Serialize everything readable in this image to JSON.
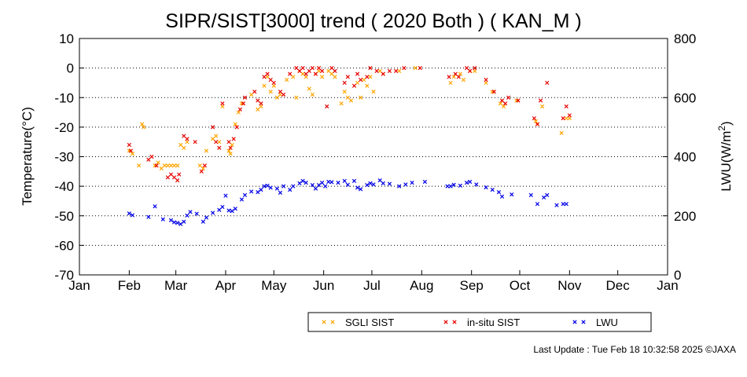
{
  "chart_data": {
    "type": "scatter",
    "title": "SIPR/SIST[3000] trend ( 2020 Both ) ( KAN_M )",
    "ylabel": "Temperature(°C)",
    "y2label": "LWU(W/m²)",
    "xlim": [
      1,
      366
    ],
    "ylim": [
      -70,
      10
    ],
    "y2lim": [
      0,
      800
    ],
    "x_ticks": [
      {
        "day": 1,
        "label": "Jan"
      },
      {
        "day": 32,
        "label": "Feb"
      },
      {
        "day": 61,
        "label": "Mar"
      },
      {
        "day": 92,
        "label": "Apr"
      },
      {
        "day": 122,
        "label": "May"
      },
      {
        "day": 153,
        "label": "Jun"
      },
      {
        "day": 183,
        "label": "Jul"
      },
      {
        "day": 214,
        "label": "Aug"
      },
      {
        "day": 245,
        "label": "Sep"
      },
      {
        "day": 275,
        "label": "Oct"
      },
      {
        "day": 306,
        "label": "Nov"
      },
      {
        "day": 336,
        "label": "Dec"
      },
      {
        "day": 367,
        "label": "Jan"
      }
    ],
    "y_ticks": [
      10,
      0,
      -10,
      -20,
      -30,
      -40,
      -50,
      -60,
      -70
    ],
    "y2_ticks": [
      800,
      600,
      400,
      200,
      0
    ],
    "grid": "horizontal dotted",
    "legend_position": "bottom",
    "series": [
      {
        "name": "SGLI SIST",
        "color": "#ffa500",
        "axis": "left",
        "points": [
          [
            32,
            -28
          ],
          [
            34,
            -29
          ],
          [
            38,
            -33
          ],
          [
            40,
            -19
          ],
          [
            41,
            -20
          ],
          [
            48,
            -33
          ],
          [
            50,
            -32
          ],
          [
            52,
            -34
          ],
          [
            54,
            -33
          ],
          [
            56,
            -33
          ],
          [
            58,
            -33
          ],
          [
            60,
            -33
          ],
          [
            62,
            -33
          ],
          [
            64,
            -26
          ],
          [
            66,
            -27
          ],
          [
            68,
            -25
          ],
          [
            76,
            -33
          ],
          [
            78,
            -34
          ],
          [
            80,
            -28
          ],
          [
            84,
            -24
          ],
          [
            86,
            -23
          ],
          [
            88,
            -25
          ],
          [
            90,
            -13
          ],
          [
            94,
            -28
          ],
          [
            95,
            -29
          ],
          [
            96,
            -26
          ],
          [
            98,
            -19
          ],
          [
            100,
            -15
          ],
          [
            102,
            -12
          ],
          [
            108,
            -9
          ],
          [
            112,
            -14
          ],
          [
            114,
            -13
          ],
          [
            116,
            -6
          ],
          [
            118,
            -3
          ],
          [
            120,
            -8
          ],
          [
            122,
            -6
          ],
          [
            124,
            -10
          ],
          [
            126,
            -9
          ],
          [
            130,
            -4
          ],
          [
            134,
            -3
          ],
          [
            136,
            -10
          ],
          [
            138,
            -1
          ],
          [
            140,
            -2
          ],
          [
            142,
            -3
          ],
          [
            144,
            -7
          ],
          [
            146,
            -9
          ],
          [
            148,
            -2
          ],
          [
            150,
            -1
          ],
          [
            152,
            -3
          ],
          [
            156,
            -1
          ],
          [
            158,
            -2
          ],
          [
            160,
            -3
          ],
          [
            164,
            -12
          ],
          [
            166,
            -8
          ],
          [
            168,
            -10
          ],
          [
            170,
            -11
          ],
          [
            174,
            -5
          ],
          [
            176,
            -10
          ],
          [
            178,
            -4
          ],
          [
            180,
            -6
          ],
          [
            182,
            -3
          ],
          [
            184,
            -8
          ],
          [
            188,
            -1
          ],
          [
            190,
            -2
          ],
          [
            200,
            -1
          ],
          [
            210,
            0
          ],
          [
            232,
            -5
          ],
          [
            234,
            -3
          ],
          [
            238,
            -2
          ],
          [
            240,
            -4
          ],
          [
            244,
            -1
          ],
          [
            247,
            -1
          ],
          [
            254,
            -5
          ],
          [
            258,
            -8
          ],
          [
            263,
            -12
          ],
          [
            265,
            -13
          ],
          [
            273,
            -11
          ],
          [
            285,
            -18
          ],
          [
            286,
            -19
          ],
          [
            289,
            -13
          ],
          [
            301,
            -22
          ],
          [
            304,
            -17
          ],
          [
            306,
            -17
          ]
        ]
      },
      {
        "name": "in-situ SIST",
        "color": "#e60000",
        "axis": "left",
        "points": [
          [
            32,
            -26
          ],
          [
            33,
            -28
          ],
          [
            44,
            -31
          ],
          [
            46,
            -30
          ],
          [
            49,
            -33
          ],
          [
            56,
            -37
          ],
          [
            58,
            -36
          ],
          [
            60,
            -37
          ],
          [
            62,
            -38
          ],
          [
            63,
            -36
          ],
          [
            66,
            -23
          ],
          [
            68,
            -24
          ],
          [
            73,
            -25
          ],
          [
            77,
            -35
          ],
          [
            79,
            -33
          ],
          [
            84,
            -20
          ],
          [
            86,
            -25
          ],
          [
            88,
            -27
          ],
          [
            90,
            -12
          ],
          [
            94,
            -25
          ],
          [
            95,
            -27
          ],
          [
            97,
            -24
          ],
          [
            99,
            -20
          ],
          [
            101,
            -14
          ],
          [
            103,
            -12
          ],
          [
            104,
            -10
          ],
          [
            110,
            -8
          ],
          [
            112,
            -11
          ],
          [
            114,
            -12
          ],
          [
            116,
            -3
          ],
          [
            118,
            -2
          ],
          [
            120,
            -4
          ],
          [
            122,
            -5
          ],
          [
            126,
            -8
          ],
          [
            128,
            -9
          ],
          [
            132,
            -2
          ],
          [
            136,
            0
          ],
          [
            138,
            -1
          ],
          [
            140,
            0
          ],
          [
            142,
            -2
          ],
          [
            144,
            -1
          ],
          [
            146,
            0
          ],
          [
            148,
            -2
          ],
          [
            150,
            0
          ],
          [
            152,
            -1
          ],
          [
            155,
            -13
          ],
          [
            158,
            0
          ],
          [
            160,
            -1
          ],
          [
            166,
            -5
          ],
          [
            168,
            -3
          ],
          [
            172,
            -6
          ],
          [
            174,
            -2
          ],
          [
            176,
            -4
          ],
          [
            180,
            -3
          ],
          [
            182,
            0
          ],
          [
            186,
            -1
          ],
          [
            190,
            -2
          ],
          [
            194,
            -1
          ],
          [
            198,
            -1
          ],
          [
            203,
            0
          ],
          [
            213,
            0
          ],
          [
            231,
            -3
          ],
          [
            235,
            -2
          ],
          [
            237,
            -3
          ],
          [
            242,
            0
          ],
          [
            244,
            -1
          ],
          [
            247,
            0
          ],
          [
            254,
            -4
          ],
          [
            259,
            -8
          ],
          [
            264,
            -11
          ],
          [
            266,
            -12
          ],
          [
            268,
            -10
          ],
          [
            274,
            -11
          ],
          [
            284,
            -17
          ],
          [
            286,
            -19
          ],
          [
            288,
            -11
          ],
          [
            292,
            -5
          ],
          [
            302,
            -17
          ],
          [
            304,
            -13
          ],
          [
            306,
            -16
          ]
        ]
      },
      {
        "name": "LWU",
        "color": "#0000e6",
        "axis": "right",
        "points": [
          [
            32,
            208
          ],
          [
            34,
            202
          ],
          [
            44,
            196
          ],
          [
            48,
            232
          ],
          [
            53,
            188
          ],
          [
            58,
            185
          ],
          [
            60,
            178
          ],
          [
            62,
            176
          ],
          [
            64,
            172
          ],
          [
            66,
            180
          ],
          [
            68,
            201
          ],
          [
            70,
            213
          ],
          [
            74,
            207
          ],
          [
            78,
            180
          ],
          [
            80,
            194
          ],
          [
            84,
            210
          ],
          [
            88,
            220
          ],
          [
            90,
            230
          ],
          [
            92,
            268
          ],
          [
            94,
            218
          ],
          [
            96,
            216
          ],
          [
            98,
            224
          ],
          [
            102,
            255
          ],
          [
            104,
            270
          ],
          [
            108,
            282
          ],
          [
            112,
            280
          ],
          [
            114,
            288
          ],
          [
            116,
            300
          ],
          [
            118,
            302
          ],
          [
            120,
            295
          ],
          [
            124,
            292
          ],
          [
            126,
            278
          ],
          [
            128,
            300
          ],
          [
            132,
            288
          ],
          [
            134,
            300
          ],
          [
            138,
            310
          ],
          [
            140,
            318
          ],
          [
            142,
            312
          ],
          [
            146,
            304
          ],
          [
            148,
            292
          ],
          [
            150,
            304
          ],
          [
            152,
            312
          ],
          [
            154,
            300
          ],
          [
            156,
            315
          ],
          [
            158,
            314
          ],
          [
            162,
            312
          ],
          [
            166,
            318
          ],
          [
            168,
            305
          ],
          [
            172,
            318
          ],
          [
            174,
            295
          ],
          [
            176,
            290
          ],
          [
            180,
            304
          ],
          [
            182,
            310
          ],
          [
            184,
            306
          ],
          [
            188,
            320
          ],
          [
            190,
            310
          ],
          [
            194,
            308
          ],
          [
            200,
            300
          ],
          [
            204,
            306
          ],
          [
            208,
            312
          ],
          [
            216,
            315
          ],
          [
            230,
            300
          ],
          [
            232,
            300
          ],
          [
            234,
            305
          ],
          [
            238,
            302
          ],
          [
            242,
            312
          ],
          [
            244,
            315
          ],
          [
            248,
            306
          ],
          [
            254,
            296
          ],
          [
            258,
            288
          ],
          [
            262,
            280
          ],
          [
            264,
            265
          ],
          [
            270,
            272
          ],
          [
            282,
            270
          ],
          [
            286,
            240
          ],
          [
            290,
            262
          ],
          [
            292,
            270
          ],
          [
            298,
            236
          ],
          [
            302,
            240
          ],
          [
            304,
            240
          ]
        ]
      }
    ]
  },
  "legend": [
    {
      "label": "SGLI SIST",
      "color": "#ffa500"
    },
    {
      "label": "in-situ SIST",
      "color": "#e60000"
    },
    {
      "label": "LWU",
      "color": "#0000e6"
    }
  ],
  "footer": "Last Update : Tue Feb 18 10:32:58 2025  ©JAXA"
}
